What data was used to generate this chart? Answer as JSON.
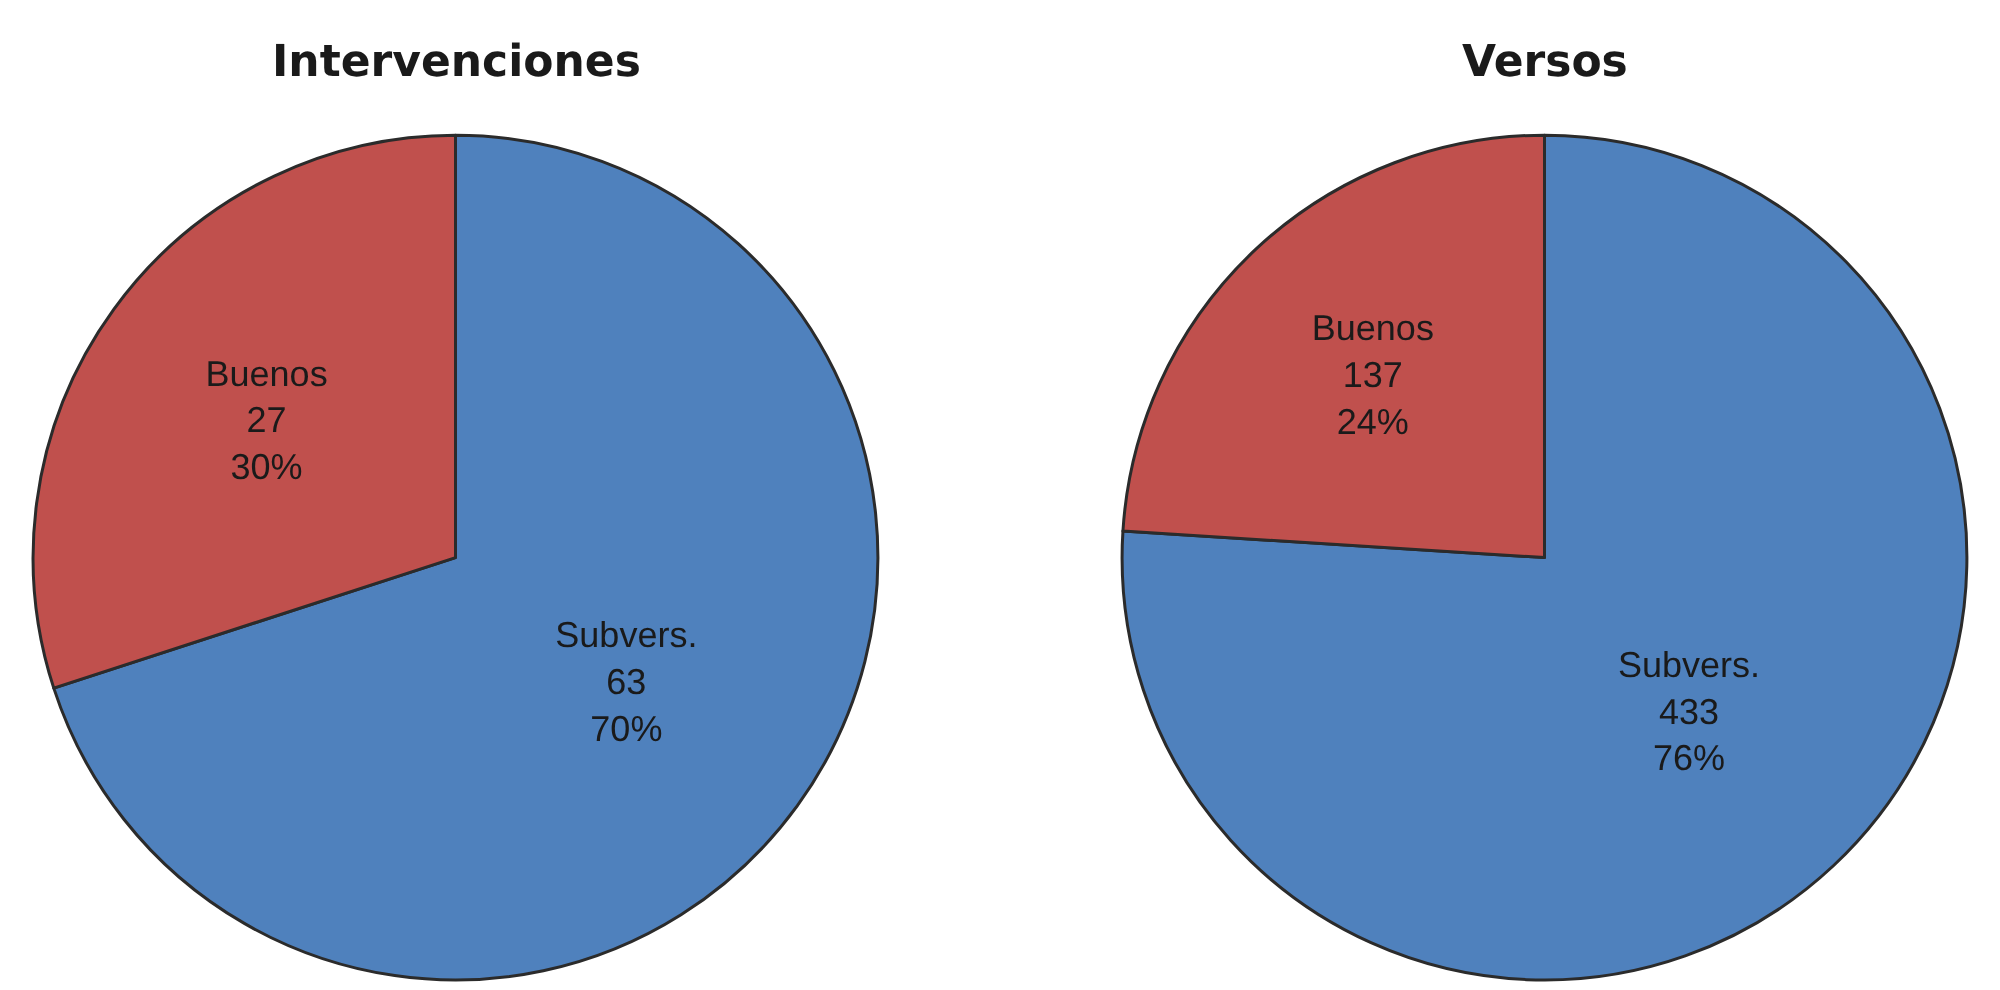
{
  "chart_data": [
    {
      "type": "pie",
      "title": "Intervenciones",
      "categories": [
        "Subvers.",
        "Buenos"
      ],
      "values": [
        70,
        30
      ],
      "colors": [
        "#4f81bd",
        "#c0504d"
      ],
      "value_labels": [
        "63\n70%",
        "27\n30%"
      ]
    },
    {
      "type": "pie",
      "title": "Versos",
      "categories": [
        "Subvers.",
        "Buenos"
      ],
      "values": [
        76,
        24
      ],
      "colors": [
        "#4f81bd",
        "#c0504d"
      ],
      "value_labels": [
        "433\n76%",
        "137\n24%"
      ]
    }
  ]
}
